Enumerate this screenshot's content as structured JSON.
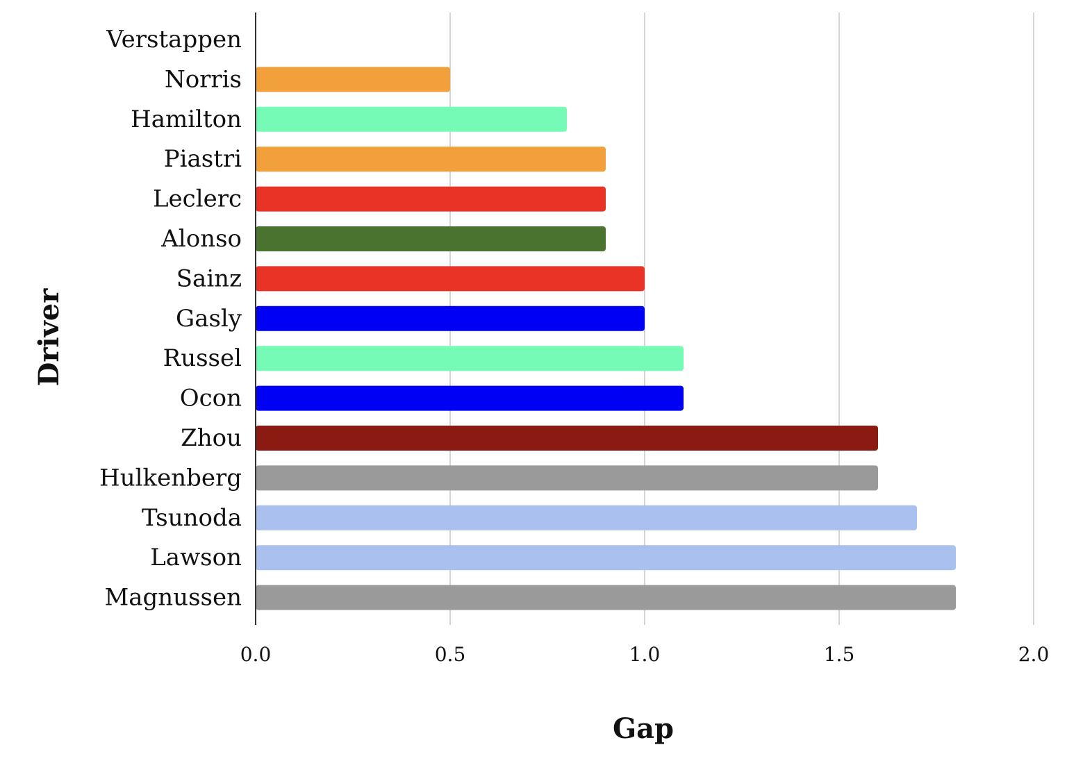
{
  "chart_data": {
    "type": "bar",
    "orientation": "horizontal",
    "title": "",
    "xlabel": "Gap",
    "ylabel": "Driver",
    "xlim": [
      0,
      2.0
    ],
    "xticks": [
      "0.0",
      "0.5",
      "1.0",
      "1.5",
      "2.0"
    ],
    "grid": "vertical",
    "legend": "none",
    "categories": [
      "Verstappen",
      "Norris",
      "Hamilton",
      "Piastri",
      "Leclerc",
      "Alonso",
      "Sainz",
      "Gasly",
      "Russel",
      "Ocon",
      "Zhou",
      "Hulkenberg",
      "Tsunoda",
      "Lawson",
      "Magnussen"
    ],
    "values": [
      0,
      0.5,
      0.8,
      0.9,
      0.9,
      0.9,
      1.0,
      1.0,
      1.1,
      1.1,
      1.6,
      1.6,
      1.7,
      1.8,
      1.8
    ],
    "colors": [
      "#ffffff",
      "#f2a03c",
      "#75fbb5",
      "#f2a03c",
      "#e83326",
      "#4a7330",
      "#e83326",
      "#0000f5",
      "#75fbb5",
      "#0000f5",
      "#8b1a12",
      "#9a9a9a",
      "#aac1ef",
      "#aac1ef",
      "#9a9a9a"
    ]
  }
}
